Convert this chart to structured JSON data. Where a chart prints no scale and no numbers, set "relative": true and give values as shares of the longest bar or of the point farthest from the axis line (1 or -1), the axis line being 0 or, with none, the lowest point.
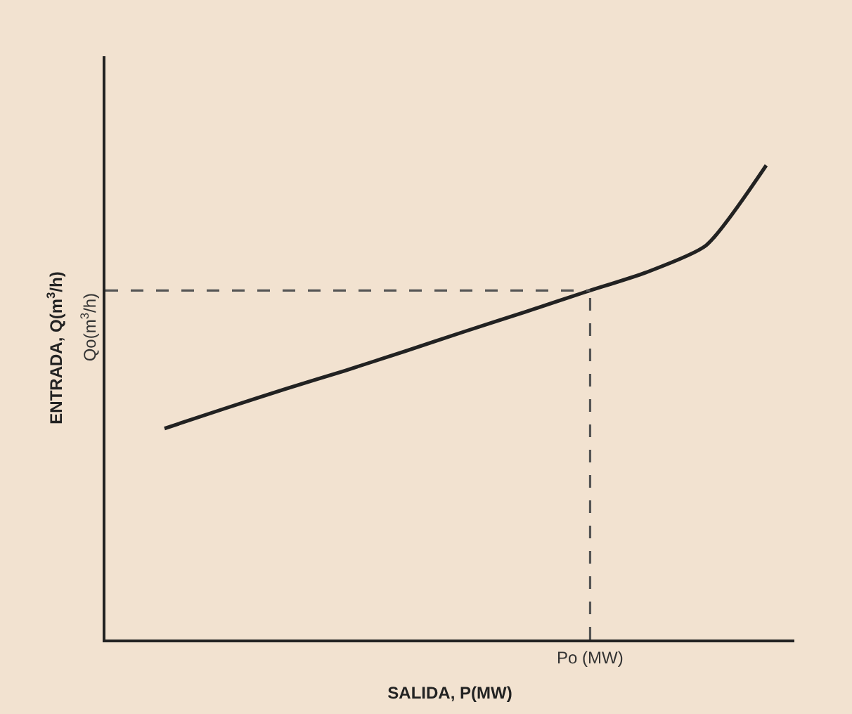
{
  "chart_data": {
    "type": "line",
    "relative": true,
    "xlabel": "SALIDA, P(MW)",
    "ylabel": "ENTRADA, Q(m$^{3}$/h)",
    "categories": [
      null,
      null,
      null,
      null,
      null,
      null,
      null,
      null,
      null,
      null,
      null
    ],
    "annotations": [
      "Po (MW)"
    ],
    "series": [
      {
        "color": "#222222",
        "values": [
          0.445,
          0.487,
          0.528,
          0.567,
          0.608,
          0.65,
          0.691,
          0.733,
          0.774,
          0.831,
          1.0
        ]
      }
    ],
    "ref_lines": [
      {
        "axis": "y",
        "value": 0.736,
        "label": "Qo(m$^{3}$/h)",
        "color": "#555555",
        "line_style": "dashed"
      }
    ],
    "grid": false,
    "marker": "none",
    "line_style": "solid"
  }
}
